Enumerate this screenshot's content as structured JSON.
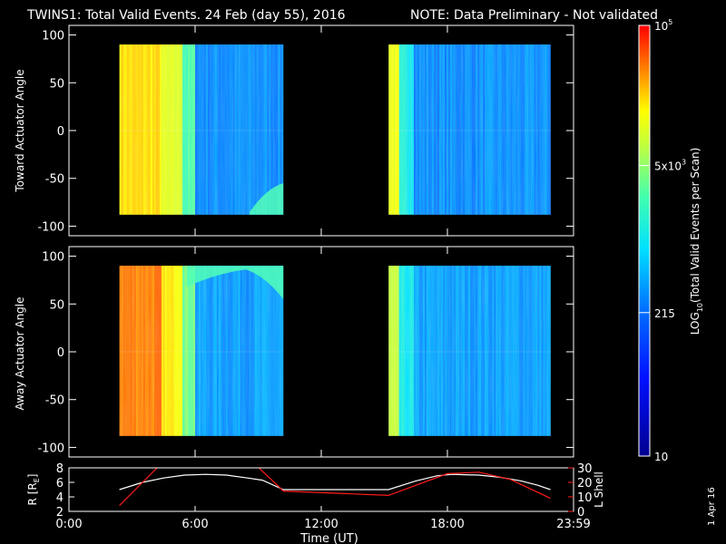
{
  "title": {
    "main": "TWINS1: Total Valid Events. 24 Feb (day  55), 2016",
    "note": "NOTE: Data Preliminary - Not validated",
    "note_color": "#ff1a1a"
  },
  "colorbar": {
    "label": "LOG10(Total Valid Events per Scan)",
    "label_prefix": "LOG",
    "label_sub": "10",
    "label_suffix": "(Total Valid Events per Scan)",
    "ticks": [
      {
        "base": "10",
        "sup": "5",
        "value": 100000
      },
      {
        "base": "5x10",
        "sup": "3",
        "value": 5000
      },
      {
        "base": "215",
        "sup": "",
        "value": 215
      },
      {
        "base": "10",
        "sup": "",
        "value": 10
      }
    ],
    "range": [
      10,
      100000
    ],
    "scale": "log",
    "colormap": [
      "#000080",
      "#0000ff",
      "#0080ff",
      "#00ffff",
      "#80ff80",
      "#ffff00",
      "#ff8000",
      "#ff0000"
    ]
  },
  "date_stamp": "1 Apr 16",
  "chart_data": [
    {
      "type": "heatmap",
      "name": "toward",
      "ylabel": "Toward Actuator Angle",
      "ylim": [
        -110,
        110
      ],
      "yticks": [
        100,
        50,
        0,
        -50,
        -100
      ],
      "xlim": [
        0,
        24
      ],
      "data_angle_range": [
        -88,
        90
      ],
      "segments": [
        {
          "start": 2.4,
          "end": 10.2
        },
        {
          "start": 15.2,
          "end": 22.9
        }
      ],
      "intensity_profile": [
        {
          "t_from": 2.4,
          "t_to": 4.4,
          "level": 0.78
        },
        {
          "t_from": 4.4,
          "t_to": 5.4,
          "level": 0.68
        },
        {
          "t_from": 5.4,
          "t_to": 6.0,
          "level": 0.5
        },
        {
          "t_from": 6.0,
          "t_to": 10.2,
          "level": 0.28
        },
        {
          "t_from": 15.2,
          "t_to": 15.7,
          "level": 0.72
        },
        {
          "t_from": 15.7,
          "t_to": 16.4,
          "level": 0.42
        },
        {
          "t_from": 16.4,
          "t_to": 22.9,
          "level": 0.28
        }
      ]
    },
    {
      "type": "heatmap",
      "name": "away",
      "ylabel": "Away Actuator Angle",
      "ylim": [
        -110,
        110
      ],
      "yticks": [
        100,
        50,
        0,
        -50,
        -100
      ],
      "xlim": [
        0,
        24
      ],
      "data_angle_range": [
        -88,
        90
      ],
      "segments": [
        {
          "start": 2.4,
          "end": 10.2
        },
        {
          "start": 15.2,
          "end": 22.9
        }
      ],
      "intensity_profile": [
        {
          "t_from": 2.4,
          "t_to": 4.4,
          "level": 0.88
        },
        {
          "t_from": 4.4,
          "t_to": 5.4,
          "level": 0.76
        },
        {
          "t_from": 5.4,
          "t_to": 6.0,
          "level": 0.55
        },
        {
          "t_from": 6.0,
          "t_to": 10.2,
          "level": 0.3
        },
        {
          "t_from": 15.2,
          "t_to": 15.7,
          "level": 0.62
        },
        {
          "t_from": 15.7,
          "t_to": 16.4,
          "level": 0.4
        },
        {
          "t_from": 16.4,
          "t_to": 22.9,
          "level": 0.3
        }
      ]
    },
    {
      "type": "line",
      "name": "orbit",
      "ylabel": "R [RE]",
      "ylabel_base": "R [R",
      "ylabel_sub": "E",
      "ylabel_end": "]",
      "ylim": [
        2,
        8
      ],
      "yticks": [
        8,
        6,
        4,
        2
      ],
      "y2label": "L Shell",
      "y2lim": [
        0,
        30
      ],
      "y2ticks": [
        30,
        20,
        10,
        0
      ],
      "y2color": "#ff2020",
      "xlabel": "Time (UT)",
      "xlim": [
        0,
        24
      ],
      "xticks": [
        {
          "value": 0,
          "label": "0:00"
        },
        {
          "value": 6,
          "label": "6:00"
        },
        {
          "value": 12,
          "label": "12:00"
        },
        {
          "value": 18,
          "label": "18:00"
        },
        {
          "value": 24,
          "label": "23:59"
        }
      ],
      "series": [
        {
          "axis": "left",
          "color": "#ffffff",
          "x": [
            2.4,
            3.5,
            4.5,
            5.5,
            6.5,
            7.5,
            8.5,
            9.2,
            10.2,
            12,
            14,
            15.2,
            16.5,
            17.5,
            18.2,
            19.5,
            20.5,
            21.5,
            22.3,
            22.9
          ],
          "y": [
            5.0,
            6.0,
            6.6,
            7.0,
            7.1,
            7.0,
            6.6,
            6.3,
            5.0,
            5.0,
            5.0,
            5.0,
            6.2,
            6.9,
            7.1,
            7.0,
            6.7,
            6.2,
            5.6,
            5.0
          ]
        },
        {
          "axis": "right",
          "color": "#ff1a1a",
          "x": [
            2.4,
            3.5,
            4.6,
            8.6,
            10.2,
            15.2,
            18.0,
            19.5,
            21.0,
            22.9
          ],
          "y": [
            4,
            20,
            36,
            36,
            14,
            11,
            26,
            27,
            22,
            9
          ]
        }
      ]
    }
  ]
}
